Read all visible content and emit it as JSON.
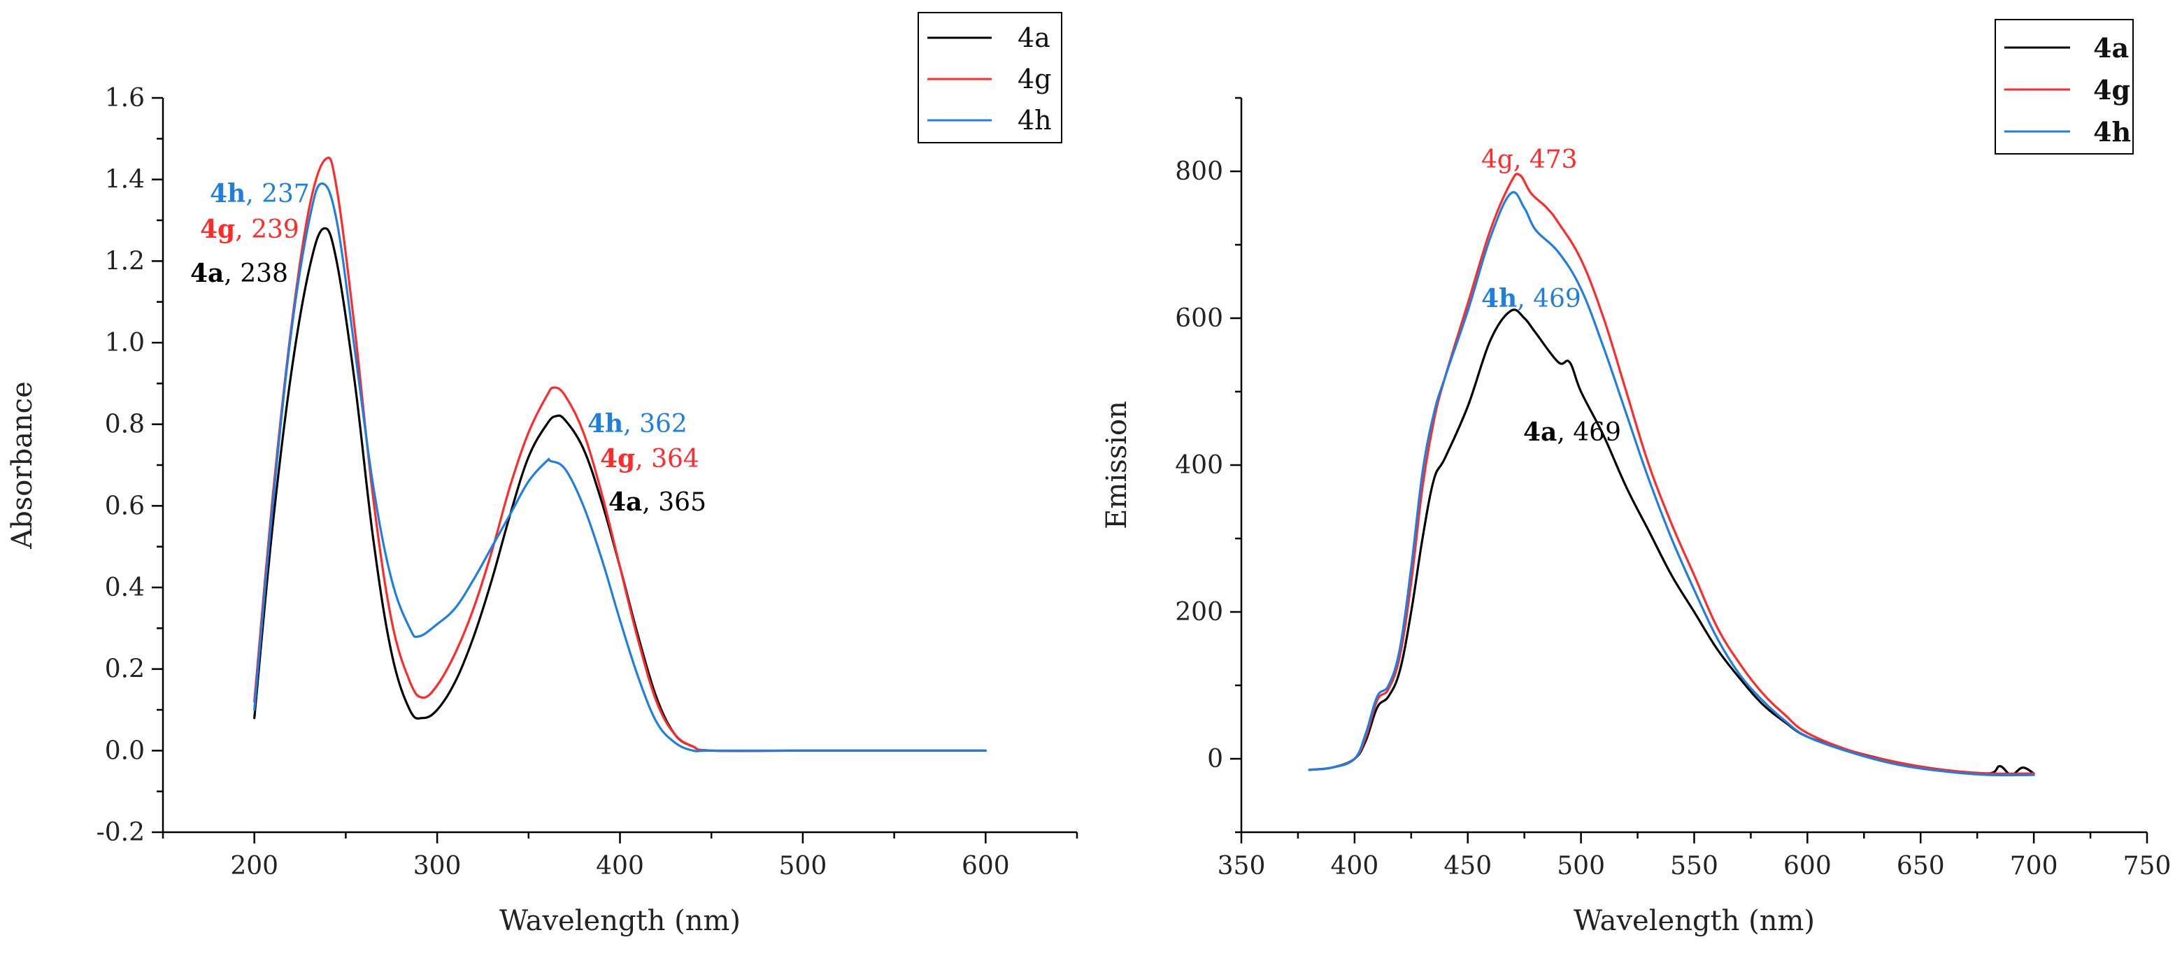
{
  "chart_data": [
    {
      "type": "line",
      "xlabel": "Wavelength (nm)",
      "ylabel": "Absorbance",
      "xlim": [
        150,
        650
      ],
      "ylim": [
        -0.2,
        1.6
      ],
      "x_ticks": [
        200,
        300,
        400,
        500,
        600
      ],
      "x_tick_labels": [
        "200",
        "300",
        "400",
        "500",
        "600"
      ],
      "y_ticks": [
        -0.2,
        0.0,
        0.2,
        0.4,
        0.6,
        0.8,
        1.0,
        1.2,
        1.4,
        1.6
      ],
      "y_tick_labels": [
        "-0.2",
        "0.0",
        "0.2",
        "0.4",
        "0.6",
        "0.8",
        "1.0",
        "1.2",
        "1.4",
        "1.6"
      ],
      "legend": {
        "position": "top-right",
        "entries": [
          "4a",
          "4g",
          "4h"
        ],
        "bold": false
      },
      "series": [
        {
          "name": "4a",
          "color": "#000000",
          "x": [
            200,
            210,
            220,
            230,
            238,
            245,
            255,
            265,
            275,
            285,
            292,
            300,
            310,
            320,
            330,
            340,
            350,
            360,
            365,
            370,
            380,
            390,
            400,
            410,
            420,
            430,
            440,
            450,
            500,
            550,
            600
          ],
          "y": [
            0.08,
            0.55,
            0.92,
            1.18,
            1.28,
            1.2,
            0.9,
            0.52,
            0.24,
            0.1,
            0.08,
            0.1,
            0.17,
            0.28,
            0.42,
            0.58,
            0.72,
            0.8,
            0.82,
            0.81,
            0.74,
            0.61,
            0.45,
            0.28,
            0.13,
            0.04,
            0.01,
            0.0,
            0.0,
            0.0,
            0.0
          ]
        },
        {
          "name": "4g",
          "color": "#ff2a2a",
          "x": [
            200,
            210,
            220,
            230,
            239,
            245,
            255,
            265,
            275,
            285,
            292,
            300,
            310,
            320,
            330,
            340,
            350,
            360,
            364,
            370,
            380,
            390,
            400,
            410,
            420,
            430,
            440,
            450,
            500,
            550,
            600
          ],
          "y": [
            0.12,
            0.62,
            1.03,
            1.33,
            1.45,
            1.38,
            1.03,
            0.62,
            0.32,
            0.17,
            0.13,
            0.16,
            0.24,
            0.35,
            0.49,
            0.65,
            0.78,
            0.87,
            0.89,
            0.87,
            0.78,
            0.63,
            0.45,
            0.27,
            0.12,
            0.04,
            0.01,
            0.0,
            0.0,
            0.0,
            0.0
          ]
        },
        {
          "name": "4h",
          "color": "#1f7fe0",
          "x": [
            200,
            210,
            220,
            230,
            237,
            245,
            255,
            265,
            275,
            285,
            290,
            300,
            310,
            320,
            330,
            340,
            350,
            360,
            362,
            370,
            380,
            390,
            400,
            410,
            420,
            430,
            440,
            450,
            500,
            550,
            600
          ],
          "y": [
            0.1,
            0.6,
            1.02,
            1.3,
            1.39,
            1.3,
            0.98,
            0.65,
            0.42,
            0.3,
            0.28,
            0.31,
            0.35,
            0.42,
            0.5,
            0.58,
            0.66,
            0.71,
            0.71,
            0.69,
            0.6,
            0.47,
            0.32,
            0.18,
            0.07,
            0.02,
            0.0,
            0.0,
            0.0,
            0.0,
            0.0
          ]
        }
      ],
      "annotations": [
        {
          "id": "4h",
          "value": "237",
          "color": "#1f7fe0"
        },
        {
          "id": "4g",
          "value": "239",
          "color": "#ff2a2a"
        },
        {
          "id": "4a",
          "value": "238",
          "color": "#000000"
        },
        {
          "id": "4h",
          "value": "362",
          "color": "#1f7fe0"
        },
        {
          "id": "4g",
          "value": "364",
          "color": "#ff2a2a"
        },
        {
          "id": "4a",
          "value": "365",
          "color": "#000000"
        }
      ]
    },
    {
      "type": "line",
      "xlabel": "Wavelength (nm)",
      "ylabel": "Emission",
      "xlim": [
        350,
        750
      ],
      "ylim": [
        -100,
        900
      ],
      "x_ticks": [
        350,
        400,
        450,
        500,
        550,
        600,
        650,
        700,
        750
      ],
      "x_tick_labels": [
        "350",
        "400",
        "450",
        "500",
        "550",
        "600",
        "650",
        "700",
        "750"
      ],
      "y_ticks": [
        0,
        200,
        400,
        600,
        800
      ],
      "y_tick_labels": [
        "0",
        "200",
        "400",
        "600",
        "800"
      ],
      "legend": {
        "position": "top-right",
        "entries": [
          "4a",
          "4g",
          "4h"
        ],
        "bold": true
      },
      "series": [
        {
          "name": "4a",
          "color": "#000000",
          "x": [
            380,
            390,
            400,
            405,
            410,
            415,
            420,
            425,
            430,
            435,
            440,
            450,
            460,
            469,
            475,
            480,
            490,
            495,
            500,
            510,
            520,
            530,
            540,
            550,
            560,
            570,
            580,
            590,
            600,
            620,
            640,
            660,
            680,
            685,
            690,
            695,
            700
          ],
          "y": [
            -15,
            -12,
            0,
            25,
            70,
            85,
            120,
            200,
            300,
            380,
            410,
            480,
            570,
            610,
            600,
            580,
            540,
            540,
            500,
            440,
            370,
            310,
            250,
            200,
            150,
            110,
            75,
            50,
            30,
            10,
            -5,
            -15,
            -20,
            -10,
            -22,
            -12,
            -20
          ],
          "smooth": true
        },
        {
          "name": "4g",
          "color": "#ff2a2a",
          "x": [
            380,
            390,
            400,
            405,
            410,
            415,
            420,
            425,
            430,
            435,
            440,
            450,
            460,
            469,
            473,
            478,
            485,
            490,
            500,
            510,
            520,
            530,
            540,
            550,
            560,
            570,
            580,
            590,
            600,
            620,
            640,
            660,
            680,
            700
          ],
          "y": [
            -15,
            -12,
            0,
            30,
            80,
            95,
            140,
            240,
            370,
            460,
            520,
            620,
            720,
            785,
            795,
            770,
            750,
            730,
            680,
            600,
            500,
            400,
            320,
            250,
            180,
            130,
            90,
            60,
            35,
            10,
            -5,
            -15,
            -20,
            -20
          ],
          "smooth": true
        },
        {
          "name": "4h",
          "color": "#1f7fe0",
          "x": [
            380,
            390,
            400,
            405,
            410,
            415,
            420,
            425,
            430,
            435,
            440,
            450,
            460,
            469,
            475,
            480,
            490,
            500,
            510,
            520,
            530,
            540,
            550,
            560,
            570,
            580,
            590,
            600,
            620,
            640,
            660,
            680,
            700
          ],
          "y": [
            -15,
            -12,
            0,
            35,
            85,
            100,
            150,
            260,
            390,
            470,
            520,
            610,
            710,
            770,
            750,
            720,
            690,
            640,
            560,
            470,
            380,
            300,
            230,
            165,
            115,
            80,
            52,
            30,
            8,
            -8,
            -17,
            -22,
            -22
          ],
          "smooth": true
        }
      ],
      "annotations": [
        {
          "id": "4g",
          "value": "473",
          "color": "#ff2a2a"
        },
        {
          "id": "4h",
          "value": "469",
          "color": "#1f7fe0"
        },
        {
          "id": "4a",
          "value": "469",
          "color": "#000000"
        }
      ]
    }
  ]
}
